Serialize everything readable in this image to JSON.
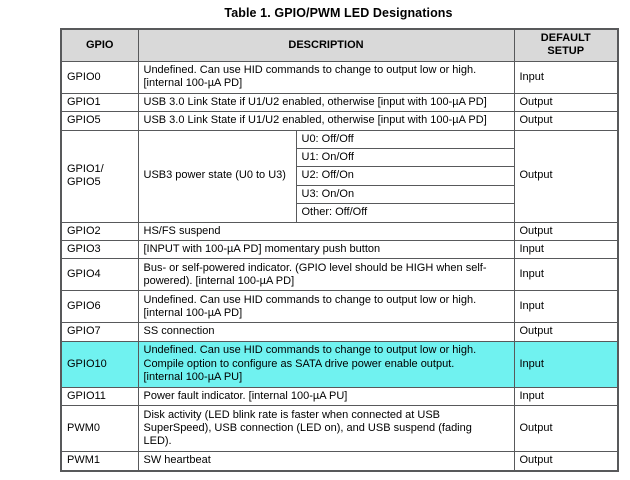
{
  "title": "Table 1. GPIO/PWM LED Designations",
  "colors": {
    "header_bg": "#d9d9d9",
    "highlight": "#70f2f0",
    "border": "#58595b",
    "text": "#000000"
  },
  "header": {
    "gpio": "GPIO",
    "description": "DESCRIPTION",
    "default_setup": "DEFAULT\nSETUP"
  },
  "rows": [
    {
      "gpio": "GPIO0",
      "desc": "Undefined. Can use HID commands to change to output low or high.\n[internal 100-µA PD]",
      "default": "Input"
    },
    {
      "gpio": "GPIO1",
      "desc": "USB 3.0 Link State if U1/U2 enabled, otherwise [input with 100-µA PD]",
      "default": "Output"
    },
    {
      "gpio": "GPIO5",
      "desc": "USB 3.0 Link State if U1/U2 enabled, otherwise [input with 100-µA PD]",
      "default": "Output"
    },
    {
      "gpio": "GPIO1/\nGPIO5",
      "desc": "USB3 power state (U0 to U3)",
      "default": "Output",
      "sub_states": [
        "U0: Off/Off",
        "U1: On/Off",
        "U2: Off/On",
        "U3: On/On",
        "Other: Off/Off"
      ]
    },
    {
      "gpio": "GPIO2",
      "desc": "HS/FS suspend",
      "default": "Output"
    },
    {
      "gpio": "GPIO3",
      "desc": "[INPUT with 100-µA PD] momentary push button",
      "default": "Input"
    },
    {
      "gpio": "GPIO4",
      "desc": "Bus- or self-powered indicator. (GPIO level should be HIGH when self-\npowered). [internal 100-µA PD]",
      "default": "Input"
    },
    {
      "gpio": "GPIO6",
      "desc": "Undefined. Can use HID commands to change to output low or high.\n[internal 100-µA PD]",
      "default": "Input"
    },
    {
      "gpio": "GPIO7",
      "desc": "SS connection",
      "default": "Output"
    },
    {
      "gpio": "GPIO10",
      "desc": "Undefined. Can use HID commands to change to output low or high.\nCompile option to configure as SATA drive power enable output.\n[internal 100-µA PU]",
      "default": "Input",
      "highlighted": true
    },
    {
      "gpio": "GPIO11",
      "desc": "Power fault indicator. [internal 100-µA PU]",
      "default": "Input"
    },
    {
      "gpio": "PWM0",
      "desc": "Disk activity (LED blink rate is faster when connected at USB\nSuperSpeed), USB connection (LED on), and USB suspend (fading\nLED).",
      "default": "Output"
    },
    {
      "gpio": "PWM1",
      "desc": "SW heartbeat",
      "default": "Output"
    }
  ]
}
